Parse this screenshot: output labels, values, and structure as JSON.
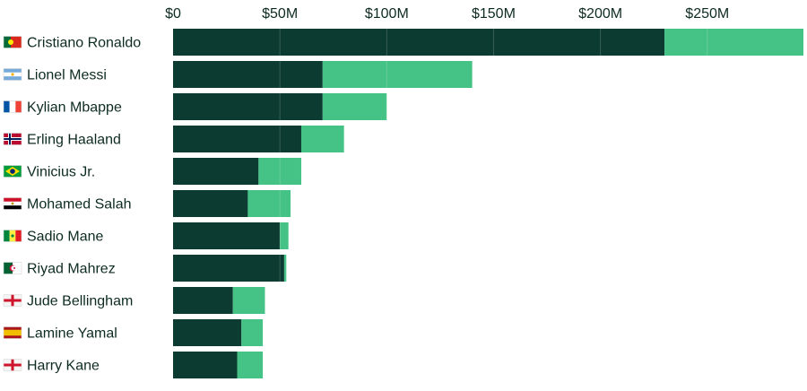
{
  "colors": {
    "salary": "#0c3b31",
    "endorsements": "#45c286",
    "gridline": "#ffffff",
    "text": "#0d2b22"
  },
  "chart_data": {
    "type": "bar",
    "orientation": "horizontal",
    "stacked": true,
    "title": "",
    "xlabel": "",
    "ylabel": "",
    "xlim": [
      0,
      295
    ],
    "x_ticks": [
      0,
      50,
      100,
      150,
      200,
      250
    ],
    "x_tick_labels": [
      "$0",
      "$50M",
      "$100M",
      "$150M",
      "$200M",
      "$250M"
    ],
    "grid": true,
    "legend": "none",
    "categories": [
      "Cristiano Ronaldo",
      "Lionel Messi",
      "Kylian Mbappe",
      "Erling Haaland",
      "Vinicius Jr.",
      "Mohamed Salah",
      "Sadio Mane",
      "Riyad Mahrez",
      "Jude Bellingham",
      "Lamine Yamal",
      "Harry Kane"
    ],
    "flags": [
      "portugal",
      "argentina",
      "france",
      "norway",
      "brazil",
      "egypt",
      "senegal",
      "algeria",
      "england",
      "spain",
      "england"
    ],
    "series": [
      {
        "values": [
          230,
          70,
          70,
          60,
          40,
          35,
          50,
          52,
          28,
          32,
          30
        ]
      },
      {
        "values": [
          65,
          70,
          30,
          20,
          20,
          20,
          4,
          1,
          15,
          10,
          12
        ]
      }
    ]
  }
}
